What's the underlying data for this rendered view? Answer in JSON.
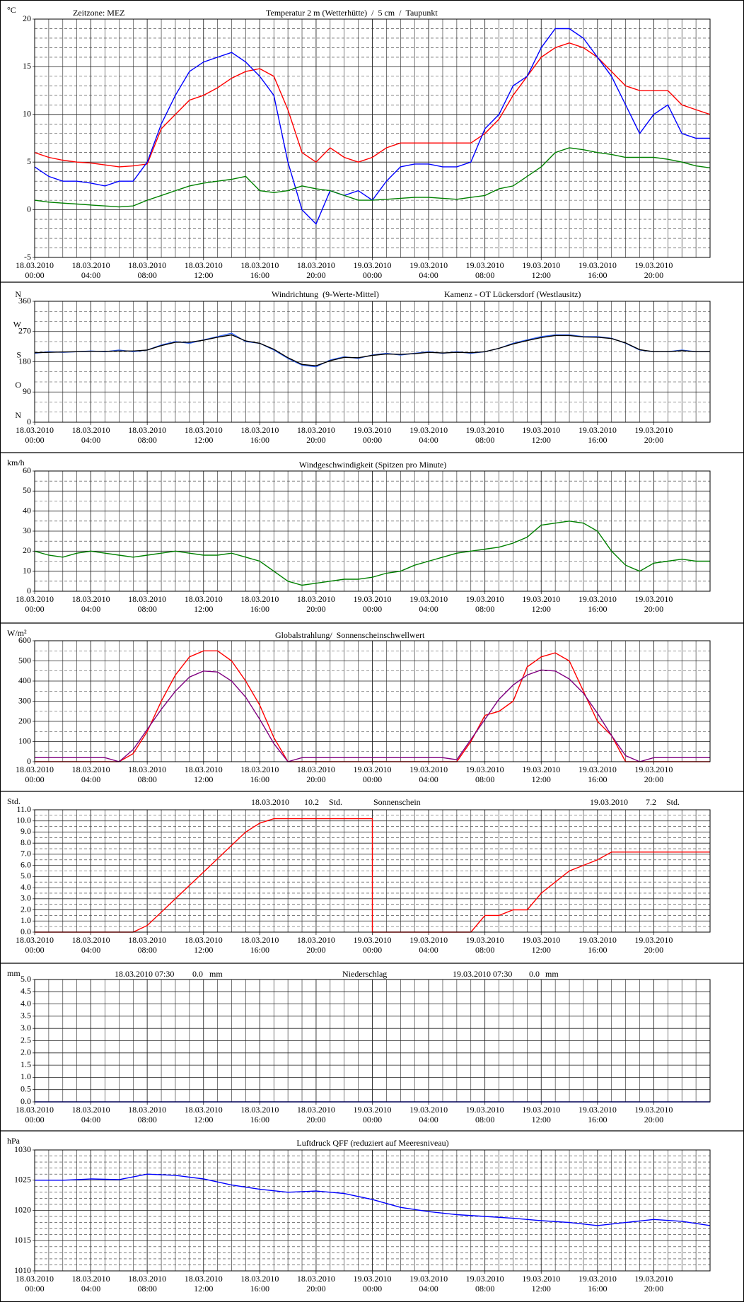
{
  "x_axis": {
    "xlim": [
      0,
      48
    ],
    "xticks": [
      {
        "value": 0,
        "label": "18.03.2010 00:00"
      },
      {
        "value": 4,
        "label": "18.03.2010 04:00"
      },
      {
        "value": 8,
        "label": "18.03.2010 08:00"
      },
      {
        "value": 12,
        "label": "18.03.2010 12:00"
      },
      {
        "value": 16,
        "label": "18.03.2010 16:00"
      },
      {
        "value": 20,
        "label": "18.03.2010 20:00"
      },
      {
        "value": 24,
        "label": "19.03.2010 00:00"
      },
      {
        "value": 28,
        "label": "19.03.2010 04:00"
      },
      {
        "value": 32,
        "label": "19.03.2010 08:00"
      },
      {
        "value": 36,
        "label": "19.03.2010 12:00"
      },
      {
        "value": 40,
        "label": "19.03.2010 16:00"
      },
      {
        "value": 44,
        "label": "19.03.2010 20:00"
      }
    ]
  },
  "chart_data": [
    {
      "type": "line",
      "unit": "°C",
      "timezone": "Zeitzone: MEZ",
      "separator": "/",
      "ylim": [
        -5,
        20
      ],
      "yticks": [
        20,
        15,
        10,
        5,
        0,
        -5
      ],
      "x": [
        0,
        1,
        2,
        3,
        4,
        5,
        6,
        7,
        8,
        9,
        10,
        11,
        12,
        13,
        14,
        15,
        16,
        17,
        18,
        19,
        20,
        21,
        22,
        23,
        24,
        25,
        26,
        27,
        28,
        29,
        30,
        31,
        32,
        33,
        34,
        35,
        36,
        37,
        38,
        39,
        40,
        41,
        42,
        43,
        44,
        45,
        46,
        47,
        48
      ],
      "series": [
        {
          "name": "Temperatur 2 m (Wetterhütte)",
          "color": "#ff0000",
          "values": [
            6,
            5.5,
            5.2,
            5,
            4.9,
            4.7,
            4.5,
            4.6,
            4.8,
            8.5,
            10,
            11.5,
            12,
            12.8,
            13.8,
            14.5,
            14.8,
            14,
            10.5,
            6,
            5,
            6.5,
            5.5,
            5,
            5.5,
            6.5,
            7,
            7,
            7,
            7,
            7,
            7,
            8,
            9.5,
            12,
            14,
            16,
            17,
            17.5,
            17,
            16,
            14.5,
            13,
            12.5,
            12.5,
            12.5,
            11,
            10.5,
            10
          ]
        },
        {
          "name": "5 cm",
          "color": "#0000ff",
          "values": [
            4.5,
            3.5,
            3,
            3,
            2.8,
            2.5,
            3,
            3,
            5,
            9,
            12,
            14.5,
            15.5,
            16,
            16.5,
            15.5,
            14,
            12,
            5,
            0,
            -1.5,
            2,
            1.5,
            2,
            1,
            3,
            4.5,
            4.8,
            4.8,
            4.5,
            4.5,
            5,
            8.5,
            10,
            13,
            14,
            17,
            19,
            19,
            18,
            16,
            14,
            11,
            8,
            10,
            11,
            8,
            7.5,
            7.5
          ]
        },
        {
          "name": "Taupunkt",
          "color": "#008000",
          "values": [
            1,
            0.8,
            0.7,
            0.6,
            0.5,
            0.4,
            0.3,
            0.4,
            1,
            1.5,
            2,
            2.5,
            2.8,
            3,
            3.2,
            3.5,
            2,
            1.8,
            2,
            2.5,
            2.2,
            2,
            1.5,
            1,
            1,
            1.1,
            1.2,
            1.3,
            1.3,
            1.2,
            1.1,
            1.3,
            1.5,
            2.2,
            2.5,
            3.5,
            4.5,
            6,
            6.5,
            6.3,
            6,
            5.8,
            5.5,
            5.5,
            5.5,
            5.3,
            5,
            4.6,
            4.4
          ]
        }
      ]
    },
    {
      "type": "line",
      "station": "Kamenz - OT Lückersdorf (Westlausitz)",
      "ylim": [
        0,
        360
      ],
      "yticks": [
        0,
        90,
        180,
        270,
        360
      ],
      "direction_labels": [
        "N",
        "O",
        "S",
        "W",
        "N"
      ],
      "x": [
        0,
        1,
        2,
        3,
        4,
        5,
        6,
        7,
        8,
        9,
        10,
        11,
        12,
        13,
        14,
        15,
        16,
        17,
        18,
        19,
        20,
        21,
        22,
        23,
        24,
        25,
        26,
        27,
        28,
        29,
        30,
        31,
        32,
        33,
        34,
        35,
        36,
        37,
        38,
        39,
        40,
        41,
        42,
        43,
        44,
        45,
        46,
        47,
        48
      ],
      "series": [
        {
          "name": "Windrichtung",
          "color": "#3366ff",
          "values": [
            205,
            210,
            208,
            210,
            212,
            210,
            215,
            210,
            215,
            230,
            240,
            235,
            245,
            255,
            265,
            240,
            235,
            215,
            190,
            170,
            165,
            185,
            195,
            190,
            200,
            205,
            200,
            205,
            210,
            205,
            210,
            205,
            210,
            220,
            235,
            245,
            255,
            260,
            260,
            255,
            255,
            250,
            235,
            215,
            210,
            210,
            215,
            210,
            210
          ]
        },
        {
          "name": "(9-Werte-Mittel)",
          "color": "#000000",
          "values": [
            207,
            208,
            209,
            210,
            211,
            211,
            212,
            212,
            215,
            228,
            238,
            238,
            244,
            253,
            260,
            242,
            235,
            217,
            192,
            172,
            168,
            183,
            193,
            192,
            199,
            203,
            202,
            204,
            208,
            206,
            208,
            207,
            210,
            220,
            233,
            243,
            252,
            258,
            258,
            254,
            253,
            249,
            236,
            216,
            210,
            210,
            213,
            210,
            210
          ]
        }
      ]
    },
    {
      "type": "line",
      "unit": "km/h",
      "title": "Windgeschwindigkeit (Spitzen pro Minute)",
      "ylim": [
        0,
        60
      ],
      "yticks": [
        0,
        10,
        20,
        30,
        40,
        50,
        60
      ],
      "x": [
        0,
        1,
        2,
        3,
        4,
        5,
        6,
        7,
        8,
        9,
        10,
        11,
        12,
        13,
        14,
        15,
        16,
        17,
        18,
        19,
        20,
        21,
        22,
        23,
        24,
        25,
        26,
        27,
        28,
        29,
        30,
        31,
        32,
        33,
        34,
        35,
        36,
        37,
        38,
        39,
        40,
        41,
        42,
        43,
        44,
        45,
        46,
        47,
        48
      ],
      "series": [
        {
          "color": "#008000",
          "values": [
            20,
            18,
            17,
            19,
            20,
            19,
            18,
            17,
            18,
            19,
            20,
            19,
            18,
            18,
            19,
            17,
            15,
            10,
            5,
            3,
            4,
            5,
            6,
            6,
            7,
            9,
            10,
            13,
            15,
            17,
            19,
            20,
            21,
            22,
            24,
            27,
            33,
            34,
            35,
            34,
            30,
            20,
            13,
            10,
            14,
            15,
            16,
            15,
            15
          ]
        }
      ]
    },
    {
      "type": "line",
      "unit": "W/m²",
      "ylim": [
        0,
        600
      ],
      "yticks": [
        0,
        100,
        200,
        300,
        400,
        500,
        600
      ],
      "x": [
        0,
        1,
        2,
        3,
        4,
        5,
        6,
        7,
        8,
        9,
        10,
        11,
        12,
        13,
        14,
        15,
        16,
        17,
        18,
        19,
        20,
        21,
        22,
        23,
        24,
        25,
        26,
        27,
        28,
        29,
        30,
        31,
        32,
        33,
        34,
        35,
        36,
        37,
        38,
        39,
        40,
        41,
        42,
        43,
        44,
        45,
        46,
        47,
        48
      ],
      "series": [
        {
          "name": "Globalstrahlung/",
          "color": "#ff0000",
          "values": [
            0,
            0,
            0,
            0,
            0,
            0,
            0,
            40,
            150,
            300,
            430,
            520,
            550,
            550,
            500,
            400,
            280,
            120,
            0,
            0,
            0,
            0,
            0,
            0,
            0,
            0,
            0,
            0,
            0,
            0,
            0,
            100,
            230,
            250,
            300,
            470,
            520,
            540,
            500,
            350,
            200,
            130,
            0,
            0,
            0,
            0,
            0,
            0,
            0
          ]
        },
        {
          "name": "Sonnenscheinschwellwert",
          "color": "#800080",
          "values": [
            20,
            20,
            20,
            20,
            20,
            20,
            0,
            60,
            160,
            260,
            350,
            420,
            450,
            445,
            400,
            320,
            210,
            90,
            0,
            20,
            20,
            20,
            20,
            20,
            20,
            20,
            20,
            20,
            20,
            20,
            10,
            110,
            210,
            310,
            380,
            430,
            455,
            450,
            410,
            340,
            240,
            130,
            30,
            0,
            20,
            20,
            20,
            20,
            20
          ]
        }
      ]
    },
    {
      "type": "line",
      "unit": "Std.",
      "title": "Sonnenschein",
      "annotations": [
        "18.03.2010",
        "10.2",
        "Std.",
        "19.03.2010",
        "7.2",
        "Std."
      ],
      "ylim": [
        0,
        11
      ],
      "yticks": [
        {
          "value": 0,
          "label": "0.0"
        },
        {
          "value": 1,
          "label": "1.0"
        },
        {
          "value": 2,
          "label": "2.0"
        },
        {
          "value": 3,
          "label": "3.0"
        },
        {
          "value": 4,
          "label": "4.0"
        },
        {
          "value": 5,
          "label": "5.0"
        },
        {
          "value": 6,
          "label": "6.0"
        },
        {
          "value": 7,
          "label": "7.0"
        },
        {
          "value": 8,
          "label": "8.0"
        },
        {
          "value": 9,
          "label": "9.0"
        },
        {
          "value": 10,
          "label": "10.0"
        },
        {
          "value": 11,
          "label": "11.0"
        }
      ],
      "x": [
        0,
        7,
        8,
        9,
        10,
        11,
        12,
        13,
        14,
        15,
        16,
        17,
        24,
        24,
        31,
        32,
        33,
        34,
        35,
        36,
        37,
        38,
        39,
        40,
        41,
        48
      ],
      "series": [
        {
          "color": "#ff0000",
          "values": [
            0,
            0,
            0.6,
            1.8,
            3,
            4.2,
            5.4,
            6.6,
            7.8,
            9,
            9.8,
            10.2,
            10.2,
            0,
            0,
            1.5,
            1.5,
            2,
            2,
            3.5,
            4.5,
            5.5,
            6,
            6.5,
            7.2,
            7.2
          ]
        }
      ]
    },
    {
      "type": "line",
      "unit": "mm",
      "title": "Niederschlag",
      "annotations": [
        "18.03.2010 07:30",
        "0.0",
        "mm",
        "19.03.2010 07:30",
        "0.0",
        "mm"
      ],
      "ylim": [
        0,
        5
      ],
      "yticks": [
        {
          "value": 0,
          "label": "0.0"
        },
        {
          "value": 0.5,
          "label": "0.5"
        },
        {
          "value": 1,
          "label": "1.0"
        },
        {
          "value": 1.5,
          "label": "1.5"
        },
        {
          "value": 2,
          "label": "2.0"
        },
        {
          "value": 2.5,
          "label": "2.5"
        },
        {
          "value": 3,
          "label": "3.0"
        },
        {
          "value": 3.5,
          "label": "3.5"
        },
        {
          "value": 4,
          "label": "4.0"
        },
        {
          "value": 4.5,
          "label": "4.5"
        },
        {
          "value": 5,
          "label": "5.0"
        }
      ],
      "x": [
        0,
        48
      ],
      "series": [
        {
          "color": "#0000ff",
          "values": [
            0,
            0
          ]
        }
      ]
    },
    {
      "type": "line",
      "unit": "hPa",
      "title": "Luftdruck QFF (reduziert auf Meeresniveau)",
      "ylim": [
        1010,
        1030
      ],
      "yticks": [
        1010,
        1015,
        1020,
        1025,
        1030
      ],
      "x": [
        0,
        2,
        4,
        6,
        8,
        10,
        12,
        14,
        16,
        18,
        20,
        22,
        24,
        26,
        28,
        30,
        32,
        34,
        36,
        38,
        40,
        42,
        44,
        46,
        48
      ],
      "series": [
        {
          "color": "#0000ff",
          "values": [
            1025,
            1025,
            1025.2,
            1025.1,
            1026,
            1025.8,
            1025.2,
            1024.2,
            1023.5,
            1023,
            1023.2,
            1022.8,
            1021.8,
            1020.5,
            1019.8,
            1019.3,
            1019,
            1018.7,
            1018.3,
            1018,
            1017.5,
            1018,
            1018.5,
            1018.2,
            1017.5
          ]
        }
      ]
    }
  ]
}
